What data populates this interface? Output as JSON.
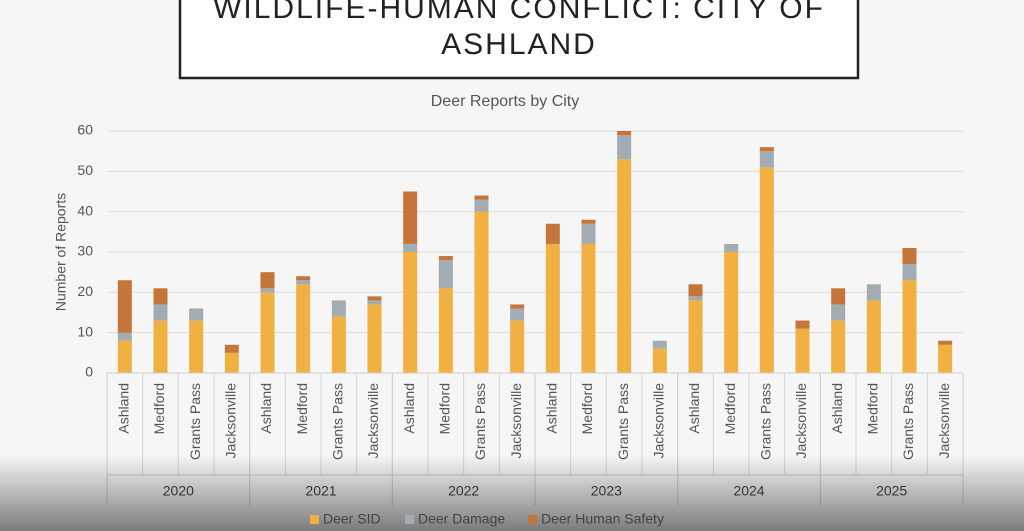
{
  "header": {
    "title_lines": [
      "WILDLIFE-HUMAN CONFLICT: CITY OF",
      "ASHLAND"
    ]
  },
  "chart_data": {
    "type": "stacked_bar",
    "title": "Deer Reports by City",
    "y_label": "Number of Reports",
    "categories": [
      "Ashland",
      "Medford",
      "Grants Pass",
      "Jacksonville",
      "Ashland",
      "Medford",
      "Grants Pass",
      "Jacksonville",
      "Ashland",
      "Medford",
      "Grants Pass",
      "Jacksonville",
      "Ashland",
      "Medford",
      "Grants Pass",
      "Jacksonville",
      "Ashland",
      "Medford",
      "Grants Pass",
      "Jacksonville",
      "Ashland",
      "Medford",
      "Grants Pass",
      "Jacksonville"
    ],
    "groups": [
      "2020",
      "2021",
      "2022",
      "2023",
      "2024",
      "2025"
    ],
    "series": [
      {
        "name": "Deer SID",
        "color": "#f0b042",
        "values": [
          8,
          13,
          13,
          5,
          20,
          22,
          14,
          17,
          30,
          21,
          40,
          13,
          32,
          32,
          53,
          6,
          18,
          30,
          51,
          11,
          13,
          18,
          23,
          7
        ]
      },
      {
        "name": "Deer Damage",
        "color": "#a3acb2",
        "values": [
          2,
          4,
          3,
          0,
          1,
          1,
          4,
          1,
          2,
          7,
          3,
          3,
          0,
          5,
          6,
          2,
          1,
          2,
          4,
          0,
          4,
          4,
          4,
          0
        ]
      },
      {
        "name": "Deer Human Safety",
        "color": "#c4763a",
        "values": [
          13,
          4,
          0,
          2,
          4,
          1,
          0,
          1,
          13,
          1,
          1,
          1,
          5,
          1,
          1,
          0,
          3,
          0,
          1,
          2,
          4,
          0,
          4,
          1
        ]
      }
    ],
    "ylim": [
      0,
      60
    ],
    "yticks": [
      0,
      10,
      20,
      30,
      40,
      50,
      60
    ],
    "grid": true,
    "legend": "bottom"
  }
}
